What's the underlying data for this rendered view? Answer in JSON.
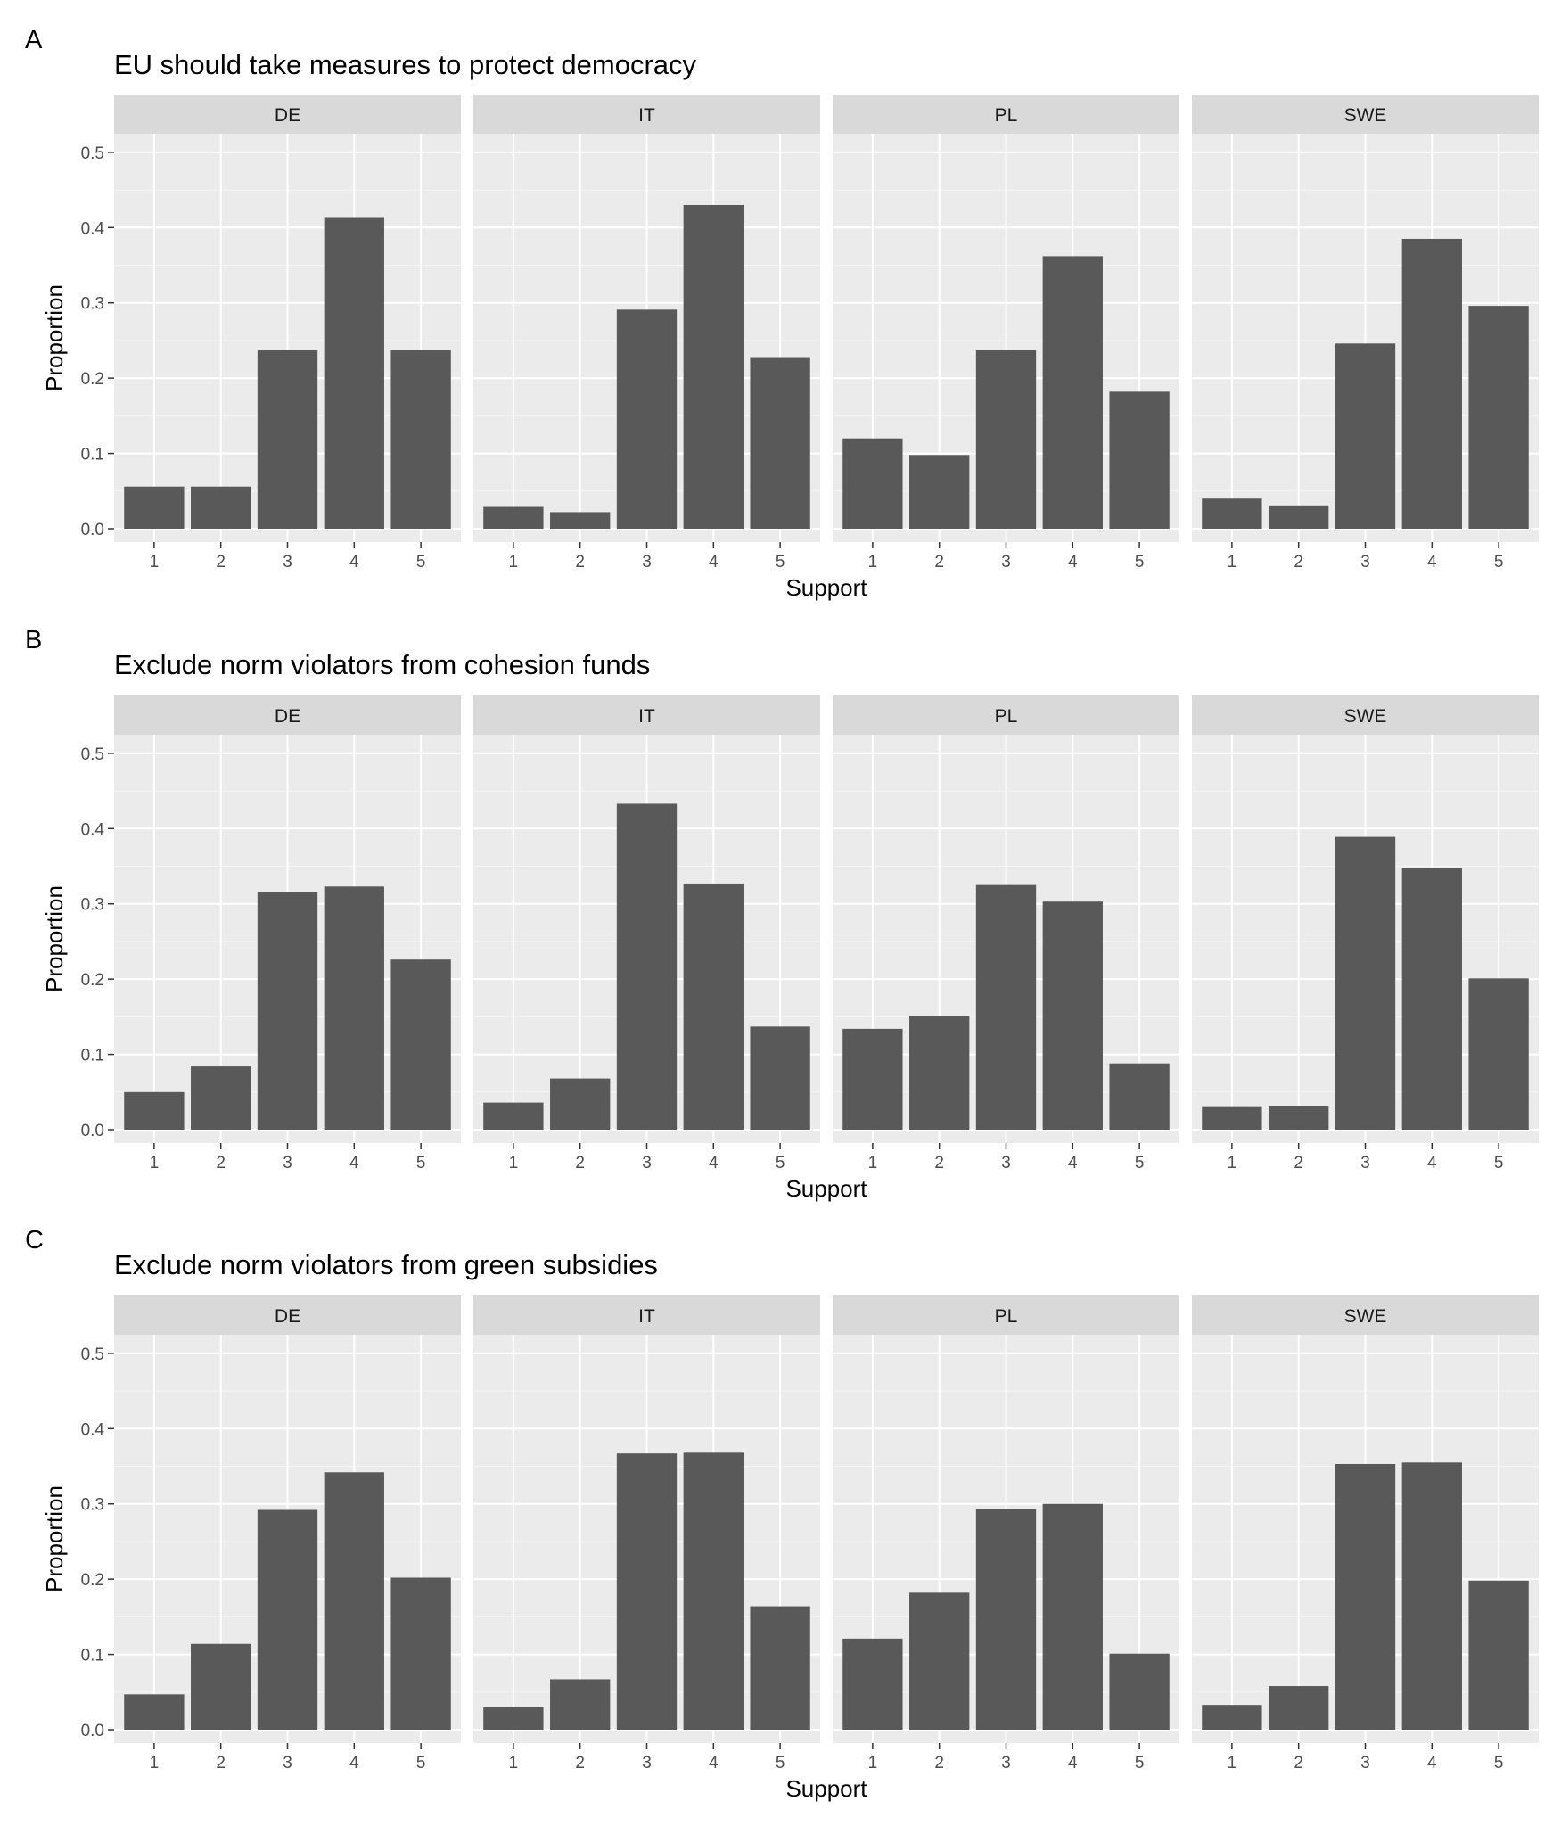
{
  "figure": {
    "xlabel": "Support",
    "ylabel": "Proportion",
    "colors": {
      "bar": "#595959",
      "panel_bg": "#ebebeb",
      "strip_bg": "#d9d9d9",
      "grid_major": "#ffffff",
      "grid_minor": "#f5f5f5",
      "tick": "#333333"
    }
  },
  "chart_data": [
    {
      "type": "bar",
      "panel_letter": "A",
      "title": "EU should take measures to protect democracy",
      "xlabel": "Support",
      "ylabel": "Proportion",
      "categories": [
        "1",
        "2",
        "3",
        "4",
        "5"
      ],
      "y_ticks": [
        "0.0",
        "0.1",
        "0.2",
        "0.3",
        "0.4",
        "0.5"
      ],
      "ylim": [
        0,
        0.52
      ],
      "grid": true,
      "facets": [
        {
          "name": "DE",
          "values": [
            0.056,
            0.056,
            0.237,
            0.414,
            0.238
          ]
        },
        {
          "name": "IT",
          "values": [
            0.029,
            0.022,
            0.291,
            0.43,
            0.228
          ]
        },
        {
          "name": "PL",
          "values": [
            0.12,
            0.098,
            0.237,
            0.362,
            0.182
          ]
        },
        {
          "name": "SWE",
          "values": [
            0.04,
            0.031,
            0.246,
            0.385,
            0.296
          ]
        }
      ]
    },
    {
      "type": "bar",
      "panel_letter": "B",
      "title": "Exclude norm violators from cohesion funds",
      "xlabel": "Support",
      "ylabel": "Proportion",
      "categories": [
        "1",
        "2",
        "3",
        "4",
        "5"
      ],
      "y_ticks": [
        "0.0",
        "0.1",
        "0.2",
        "0.3",
        "0.4",
        "0.5"
      ],
      "ylim": [
        0,
        0.52
      ],
      "grid": true,
      "facets": [
        {
          "name": "DE",
          "values": [
            0.05,
            0.084,
            0.316,
            0.323,
            0.226
          ]
        },
        {
          "name": "IT",
          "values": [
            0.036,
            0.068,
            0.433,
            0.327,
            0.137
          ]
        },
        {
          "name": "PL",
          "values": [
            0.134,
            0.151,
            0.325,
            0.303,
            0.088
          ]
        },
        {
          "name": "SWE",
          "values": [
            0.03,
            0.031,
            0.389,
            0.348,
            0.201
          ]
        }
      ]
    },
    {
      "type": "bar",
      "panel_letter": "C",
      "title": "Exclude norm violators from green subsidies",
      "xlabel": "Support",
      "ylabel": "Proportion",
      "categories": [
        "1",
        "2",
        "3",
        "4",
        "5"
      ],
      "y_ticks": [
        "0.0",
        "0.1",
        "0.2",
        "0.3",
        "0.4",
        "0.5"
      ],
      "ylim": [
        0,
        0.52
      ],
      "grid": true,
      "facets": [
        {
          "name": "DE",
          "values": [
            0.047,
            0.114,
            0.292,
            0.342,
            0.202
          ]
        },
        {
          "name": "IT",
          "values": [
            0.03,
            0.067,
            0.367,
            0.368,
            0.164
          ]
        },
        {
          "name": "PL",
          "values": [
            0.121,
            0.182,
            0.293,
            0.3,
            0.101
          ]
        },
        {
          "name": "SWE",
          "values": [
            0.033,
            0.058,
            0.353,
            0.355,
            0.198
          ]
        }
      ]
    }
  ]
}
